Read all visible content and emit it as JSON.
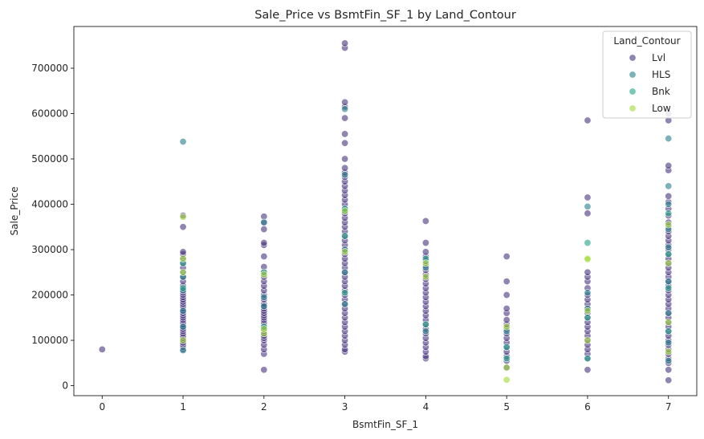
{
  "chart_data": {
    "type": "scatter",
    "title": "Sale_Price vs BsmtFin_SF_1 by Land_Contour",
    "xlabel": "BsmtFin_SF_1",
    "ylabel": "Sale_Price",
    "xlim": [
      -0.35,
      7.35
    ],
    "ylim": [
      -22000,
      792000
    ],
    "xticks": [
      0,
      1,
      2,
      3,
      4,
      5,
      6,
      7
    ],
    "xtick_labels": [
      "0",
      "1",
      "2",
      "3",
      "4",
      "5",
      "6",
      "7"
    ],
    "yticks": [
      0,
      100000,
      200000,
      300000,
      400000,
      500000,
      600000,
      700000
    ],
    "ytick_labels": [
      "0",
      "100000",
      "200000",
      "300000",
      "400000",
      "500000",
      "600000",
      "700000"
    ],
    "legend": {
      "title": "Land_Contour",
      "position": "top-right",
      "entries": [
        "Lvl",
        "HLS",
        "Bnk",
        "Low"
      ]
    },
    "series": [
      {
        "name": "Lvl",
        "color": "#46327e",
        "points": [
          [
            0,
            80000
          ],
          [
            1,
            80000
          ],
          [
            1,
            85000
          ],
          [
            1,
            90000
          ],
          [
            1,
            95000
          ],
          [
            1,
            100000
          ],
          [
            1,
            105000
          ],
          [
            1,
            110000
          ],
          [
            1,
            115000
          ],
          [
            1,
            120000
          ],
          [
            1,
            125000
          ],
          [
            1,
            130000
          ],
          [
            1,
            135000
          ],
          [
            1,
            140000
          ],
          [
            1,
            145000
          ],
          [
            1,
            150000
          ],
          [
            1,
            155000
          ],
          [
            1,
            160000
          ],
          [
            1,
            165000
          ],
          [
            1,
            170000
          ],
          [
            1,
            175000
          ],
          [
            1,
            180000
          ],
          [
            1,
            185000
          ],
          [
            1,
            190000
          ],
          [
            1,
            195000
          ],
          [
            1,
            200000
          ],
          [
            1,
            205000
          ],
          [
            1,
            210000
          ],
          [
            1,
            220000
          ],
          [
            1,
            230000
          ],
          [
            1,
            240000
          ],
          [
            1,
            250000
          ],
          [
            1,
            260000
          ],
          [
            1,
            270000
          ],
          [
            1,
            280000
          ],
          [
            1,
            290000
          ],
          [
            1,
            295000
          ],
          [
            1,
            350000
          ],
          [
            1,
            375000
          ],
          [
            2,
            35000
          ],
          [
            2,
            70000
          ],
          [
            2,
            80000
          ],
          [
            2,
            90000
          ],
          [
            2,
            100000
          ],
          [
            2,
            105000
          ],
          [
            2,
            110000
          ],
          [
            2,
            115000
          ],
          [
            2,
            120000
          ],
          [
            2,
            125000
          ],
          [
            2,
            130000
          ],
          [
            2,
            135000
          ],
          [
            2,
            140000
          ],
          [
            2,
            145000
          ],
          [
            2,
            150000
          ],
          [
            2,
            155000
          ],
          [
            2,
            160000
          ],
          [
            2,
            165000
          ],
          [
            2,
            170000
          ],
          [
            2,
            175000
          ],
          [
            2,
            180000
          ],
          [
            2,
            190000
          ],
          [
            2,
            200000
          ],
          [
            2,
            210000
          ],
          [
            2,
            220000
          ],
          [
            2,
            230000
          ],
          [
            2,
            240000
          ],
          [
            2,
            250000
          ],
          [
            2,
            262000
          ],
          [
            2,
            285000
          ],
          [
            2,
            310000
          ],
          [
            2,
            315000
          ],
          [
            2,
            345000
          ],
          [
            2,
            360000
          ],
          [
            2,
            373000
          ],
          [
            3,
            75000
          ],
          [
            3,
            80000
          ],
          [
            3,
            90000
          ],
          [
            3,
            100000
          ],
          [
            3,
            110000
          ],
          [
            3,
            120000
          ],
          [
            3,
            130000
          ],
          [
            3,
            140000
          ],
          [
            3,
            150000
          ],
          [
            3,
            160000
          ],
          [
            3,
            170000
          ],
          [
            3,
            180000
          ],
          [
            3,
            190000
          ],
          [
            3,
            200000
          ],
          [
            3,
            210000
          ],
          [
            3,
            220000
          ],
          [
            3,
            230000
          ],
          [
            3,
            240000
          ],
          [
            3,
            250000
          ],
          [
            3,
            260000
          ],
          [
            3,
            270000
          ],
          [
            3,
            280000
          ],
          [
            3,
            290000
          ],
          [
            3,
            300000
          ],
          [
            3,
            310000
          ],
          [
            3,
            320000
          ],
          [
            3,
            330000
          ],
          [
            3,
            340000
          ],
          [
            3,
            350000
          ],
          [
            3,
            360000
          ],
          [
            3,
            370000
          ],
          [
            3,
            380000
          ],
          [
            3,
            390000
          ],
          [
            3,
            400000
          ],
          [
            3,
            410000
          ],
          [
            3,
            420000
          ],
          [
            3,
            430000
          ],
          [
            3,
            440000
          ],
          [
            3,
            450000
          ],
          [
            3,
            460000
          ],
          [
            3,
            470000
          ],
          [
            3,
            480000
          ],
          [
            3,
            500000
          ],
          [
            3,
            535000
          ],
          [
            3,
            555000
          ],
          [
            3,
            590000
          ],
          [
            3,
            615000
          ],
          [
            3,
            625000
          ],
          [
            3,
            745000
          ],
          [
            3,
            755000
          ],
          [
            4,
            60000
          ],
          [
            4,
            65000
          ],
          [
            4,
            75000
          ],
          [
            4,
            85000
          ],
          [
            4,
            95000
          ],
          [
            4,
            105000
          ],
          [
            4,
            115000
          ],
          [
            4,
            125000
          ],
          [
            4,
            135000
          ],
          [
            4,
            145000
          ],
          [
            4,
            155000
          ],
          [
            4,
            165000
          ],
          [
            4,
            175000
          ],
          [
            4,
            185000
          ],
          [
            4,
            195000
          ],
          [
            4,
            205000
          ],
          [
            4,
            215000
          ],
          [
            4,
            225000
          ],
          [
            4,
            235000
          ],
          [
            4,
            245000
          ],
          [
            4,
            255000
          ],
          [
            4,
            265000
          ],
          [
            4,
            275000
          ],
          [
            4,
            285000
          ],
          [
            4,
            295000
          ],
          [
            4,
            315000
          ],
          [
            4,
            363000
          ],
          [
            5,
            40000
          ],
          [
            5,
            55000
          ],
          [
            5,
            65000
          ],
          [
            5,
            75000
          ],
          [
            5,
            85000
          ],
          [
            5,
            95000
          ],
          [
            5,
            105000
          ],
          [
            5,
            115000
          ],
          [
            5,
            125000
          ],
          [
            5,
            135000
          ],
          [
            5,
            145000
          ],
          [
            5,
            160000
          ],
          [
            5,
            170000
          ],
          [
            5,
            200000
          ],
          [
            5,
            230000
          ],
          [
            5,
            285000
          ],
          [
            6,
            35000
          ],
          [
            6,
            60000
          ],
          [
            6,
            70000
          ],
          [
            6,
            80000
          ],
          [
            6,
            90000
          ],
          [
            6,
            100000
          ],
          [
            6,
            110000
          ],
          [
            6,
            120000
          ],
          [
            6,
            130000
          ],
          [
            6,
            140000
          ],
          [
            6,
            150000
          ],
          [
            6,
            160000
          ],
          [
            6,
            170000
          ],
          [
            6,
            180000
          ],
          [
            6,
            190000
          ],
          [
            6,
            200000
          ],
          [
            6,
            215000
          ],
          [
            6,
            230000
          ],
          [
            6,
            240000
          ],
          [
            6,
            250000
          ],
          [
            6,
            380000
          ],
          [
            6,
            415000
          ],
          [
            6,
            585000
          ],
          [
            7,
            12000
          ],
          [
            7,
            35000
          ],
          [
            7,
            50000
          ],
          [
            7,
            60000
          ],
          [
            7,
            70000
          ],
          [
            7,
            80000
          ],
          [
            7,
            90000
          ],
          [
            7,
            100000
          ],
          [
            7,
            110000
          ],
          [
            7,
            120000
          ],
          [
            7,
            130000
          ],
          [
            7,
            140000
          ],
          [
            7,
            150000
          ],
          [
            7,
            160000
          ],
          [
            7,
            170000
          ],
          [
            7,
            180000
          ],
          [
            7,
            190000
          ],
          [
            7,
            200000
          ],
          [
            7,
            210000
          ],
          [
            7,
            220000
          ],
          [
            7,
            230000
          ],
          [
            7,
            240000
          ],
          [
            7,
            250000
          ],
          [
            7,
            260000
          ],
          [
            7,
            270000
          ],
          [
            7,
            280000
          ],
          [
            7,
            290000
          ],
          [
            7,
            300000
          ],
          [
            7,
            310000
          ],
          [
            7,
            320000
          ],
          [
            7,
            330000
          ],
          [
            7,
            340000
          ],
          [
            7,
            350000
          ],
          [
            7,
            360000
          ],
          [
            7,
            375000
          ],
          [
            7,
            390000
          ],
          [
            7,
            405000
          ],
          [
            7,
            418000
          ],
          [
            7,
            475000
          ],
          [
            7,
            485000
          ],
          [
            7,
            585000
          ],
          [
            7,
            600000
          ]
        ]
      },
      {
        "name": "HLS",
        "color": "#277f8e",
        "points": [
          [
            1,
            78000
          ],
          [
            1,
            130000
          ],
          [
            1,
            165000
          ],
          [
            1,
            210000
          ],
          [
            1,
            240000
          ],
          [
            1,
            538000
          ],
          [
            2,
            175000
          ],
          [
            2,
            195000
          ],
          [
            2,
            360000
          ],
          [
            3,
            180000
          ],
          [
            3,
            250000
          ],
          [
            3,
            300000
          ],
          [
            3,
            385000
          ],
          [
            3,
            465000
          ],
          [
            3,
            610000
          ],
          [
            4,
            120000
          ],
          [
            4,
            260000
          ],
          [
            5,
            120000
          ],
          [
            6,
            170000
          ],
          [
            6,
            205000
          ],
          [
            6,
            395000
          ],
          [
            7,
            55000
          ],
          [
            7,
            95000
          ],
          [
            7,
            160000
          ],
          [
            7,
            230000
          ],
          [
            7,
            305000
          ],
          [
            7,
            345000
          ],
          [
            7,
            400000
          ],
          [
            7,
            440000
          ],
          [
            7,
            545000
          ]
        ]
      },
      {
        "name": "Bnk",
        "color": "#1fa187",
        "points": [
          [
            1,
            215000
          ],
          [
            1,
            270000
          ],
          [
            2,
            130000
          ],
          [
            2,
            250000
          ],
          [
            3,
            205000
          ],
          [
            3,
            330000
          ],
          [
            3,
            390000
          ],
          [
            4,
            135000
          ],
          [
            4,
            280000
          ],
          [
            5,
            60000
          ],
          [
            5,
            85000
          ],
          [
            6,
            60000
          ],
          [
            6,
            150000
          ],
          [
            6,
            315000
          ],
          [
            7,
            120000
          ],
          [
            7,
            215000
          ],
          [
            7,
            290000
          ],
          [
            7,
            380000
          ]
        ]
      },
      {
        "name": "Low",
        "color": "#a0da39",
        "points": [
          [
            1,
            100000
          ],
          [
            1,
            250000
          ],
          [
            1,
            280000
          ],
          [
            1,
            372000
          ],
          [
            2,
            115000
          ],
          [
            2,
            125000
          ],
          [
            2,
            245000
          ],
          [
            3,
            295000
          ],
          [
            3,
            385000
          ],
          [
            4,
            240000
          ],
          [
            4,
            270000
          ],
          [
            5,
            13000
          ],
          [
            5,
            40000
          ],
          [
            5,
            130000
          ],
          [
            6,
            100000
          ],
          [
            6,
            165000
          ],
          [
            6,
            278000
          ],
          [
            6,
            280000
          ],
          [
            7,
            75000
          ],
          [
            7,
            140000
          ],
          [
            7,
            270000
          ],
          [
            7,
            355000
          ]
        ]
      }
    ]
  }
}
